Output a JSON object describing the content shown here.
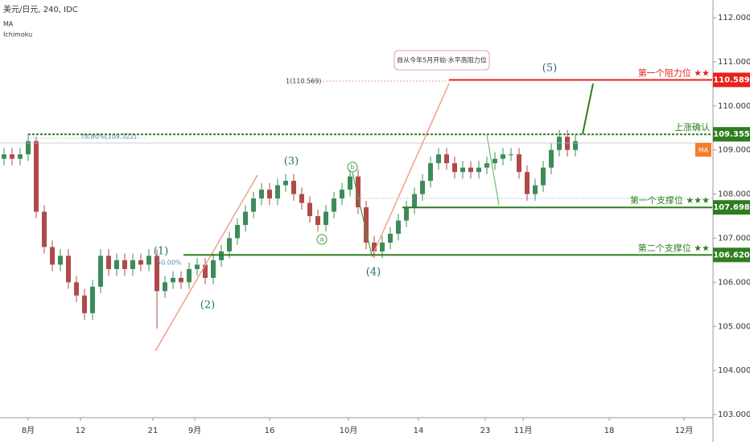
{
  "chart_data": {
    "type": "candlestick",
    "header": {
      "symbol": "美元/日元, 240, IDC",
      "indicators": [
        "MA",
        "Ichimoku"
      ]
    },
    "ma_tag": "MA",
    "up_color": "#3c8c5a",
    "down_color": "#b04a4a",
    "x": [
      0,
      1,
      2,
      3,
      4,
      5,
      6,
      7,
      8,
      9,
      10,
      11,
      12,
      13,
      14,
      15,
      16,
      17,
      18,
      19,
      20,
      21,
      22,
      23,
      24,
      25,
      26,
      27,
      28,
      29,
      30,
      31,
      32,
      33,
      34,
      35,
      36,
      37,
      38,
      39,
      40,
      41,
      42,
      43,
      44,
      45,
      46,
      47,
      48,
      49,
      50,
      51,
      52,
      53,
      54,
      55,
      56,
      57,
      58,
      59,
      60,
      61,
      62,
      63,
      64,
      65,
      66,
      67,
      68,
      69,
      70,
      71
    ],
    "open": [
      108.8,
      108.9,
      108.8,
      108.9,
      109.2,
      107.6,
      106.8,
      106.4,
      106.6,
      106.0,
      105.7,
      105.3,
      105.9,
      106.6,
      106.3,
      106.5,
      106.3,
      106.5,
      106.4,
      106.6,
      105.8,
      106.0,
      106.1,
      106.0,
      106.3,
      106.4,
      106.1,
      106.5,
      106.7,
      107.0,
      107.3,
      107.6,
      107.9,
      108.1,
      107.9,
      108.2,
      108.3,
      108.0,
      107.8,
      107.5,
      107.3,
      107.6,
      107.9,
      108.1,
      108.4,
      107.7,
      106.9,
      106.7,
      106.9,
      107.1,
      107.4,
      107.7,
      108.0,
      108.3,
      108.7,
      108.9,
      108.7,
      108.5,
      108.6,
      108.5,
      108.6,
      108.7,
      108.8,
      108.9,
      108.9,
      108.5,
      108.0,
      108.2,
      108.6,
      109.0,
      109.3,
      109.0
    ],
    "high": [
      109.05,
      109.05,
      109.05,
      109.35,
      109.3,
      107.75,
      106.95,
      106.75,
      106.75,
      106.15,
      105.85,
      106.05,
      106.75,
      106.75,
      106.65,
      106.65,
      106.65,
      106.65,
      106.75,
      106.75,
      106.15,
      106.25,
      106.25,
      106.45,
      106.55,
      106.55,
      106.65,
      106.85,
      107.15,
      107.45,
      107.75,
      108.05,
      108.25,
      108.25,
      108.35,
      108.45,
      108.45,
      108.15,
      107.95,
      107.65,
      107.75,
      108.05,
      108.25,
      108.55,
      108.55,
      107.85,
      107.05,
      107.05,
      107.25,
      107.55,
      107.85,
      108.15,
      108.45,
      108.85,
      109.05,
      109.05,
      108.85,
      108.75,
      108.75,
      108.75,
      108.85,
      108.95,
      109.05,
      109.05,
      109.05,
      108.65,
      108.35,
      108.75,
      109.15,
      109.45,
      109.45,
      109.35
    ],
    "low": [
      108.65,
      108.65,
      108.65,
      108.75,
      107.45,
      106.65,
      106.25,
      106.25,
      105.85,
      105.55,
      105.15,
      105.15,
      105.75,
      106.15,
      106.15,
      106.15,
      106.15,
      106.25,
      106.25,
      104.95,
      105.65,
      105.85,
      105.85,
      105.85,
      106.15,
      105.95,
      105.95,
      106.35,
      106.55,
      106.85,
      107.15,
      107.45,
      107.75,
      107.75,
      107.75,
      108.05,
      107.85,
      107.65,
      107.35,
      107.15,
      107.15,
      107.45,
      107.75,
      107.95,
      107.55,
      106.75,
      106.55,
      106.55,
      106.75,
      106.95,
      107.25,
      107.55,
      107.85,
      108.15,
      108.55,
      108.55,
      108.35,
      108.35,
      108.35,
      108.35,
      108.45,
      108.55,
      108.65,
      108.75,
      108.35,
      107.85,
      107.85,
      108.05,
      108.45,
      108.85,
      108.85,
      108.85
    ],
    "close": [
      108.9,
      108.8,
      108.9,
      109.2,
      107.6,
      106.8,
      106.4,
      106.6,
      106.0,
      105.7,
      105.3,
      105.9,
      106.6,
      106.3,
      106.5,
      106.3,
      106.5,
      106.4,
      106.6,
      105.8,
      106.0,
      106.1,
      106.0,
      106.3,
      106.4,
      106.1,
      106.5,
      106.7,
      107.0,
      107.3,
      107.6,
      107.9,
      108.1,
      107.9,
      108.2,
      108.3,
      108.0,
      107.8,
      107.5,
      107.3,
      107.6,
      107.9,
      108.1,
      108.4,
      107.7,
      106.9,
      106.7,
      106.9,
      107.1,
      107.4,
      107.7,
      108.0,
      108.3,
      108.7,
      108.9,
      108.7,
      108.5,
      108.6,
      108.5,
      108.6,
      108.7,
      108.8,
      108.9,
      108.9,
      108.5,
      108.0,
      108.2,
      108.6,
      109.0,
      109.3,
      109.0,
      109.2
    ],
    "xlim": [
      -0.5,
      88
    ],
    "xticks": [
      {
        "value": 3,
        "label": "8月"
      },
      {
        "value": 9.5,
        "label": "12"
      },
      {
        "value": 18.5,
        "label": "21"
      },
      {
        "value": 23.7,
        "label": "9月"
      },
      {
        "value": 33,
        "label": "16"
      },
      {
        "value": 42.8,
        "label": "10月"
      },
      {
        "value": 51.5,
        "label": "14"
      },
      {
        "value": 59.8,
        "label": "23"
      },
      {
        "value": 64.5,
        "label": "11月"
      },
      {
        "value": 75.2,
        "label": "18"
      },
      {
        "value": 84.5,
        "label": "12月"
      }
    ],
    "ylim": [
      102.93,
      112.4
    ],
    "yticks": [
      {
        "value": 103,
        "label": "103.000"
      },
      {
        "value": 104,
        "label": "104.000"
      },
      {
        "value": 105,
        "label": "105.000"
      },
      {
        "value": 106,
        "label": "106.000"
      },
      {
        "value": 107,
        "label": "107.000"
      },
      {
        "value": 108,
        "label": "108.000"
      },
      {
        "value": 109,
        "label": "109.000"
      },
      {
        "value": 110,
        "label": "110.000"
      },
      {
        "value": 111,
        "label": "111.000"
      },
      {
        "value": 112,
        "label": "112.000"
      }
    ],
    "levels": [
      {
        "name": "第一个阻力位 ★★",
        "price": 110.589,
        "color": "#e8211b"
      },
      {
        "name": "上涨确认",
        "price": {
          "value": 109.355,
          "label": "109.355"
        },
        "color": "#2f7d1f"
      },
      {
        "name": "第一个支撑位 ★★★",
        "price": {
          "value": 107.698,
          "label": "107.698"
        },
        "color": "#2f7d1f"
      },
      {
        "name": "第二个支撑位 ★★",
        "price": {
          "value": 106.62,
          "label": "106.620"
        },
        "color": "#2f7d1f"
      }
    ],
    "annotations": [
      "自从今年5月开始·水平高阻力位",
      "1(110.569)",
      "78.60%(109.322)",
      "50.00%",
      "(1)",
      "(2)",
      "(3)",
      "(4)",
      "(5)",
      "a",
      "b"
    ]
  }
}
